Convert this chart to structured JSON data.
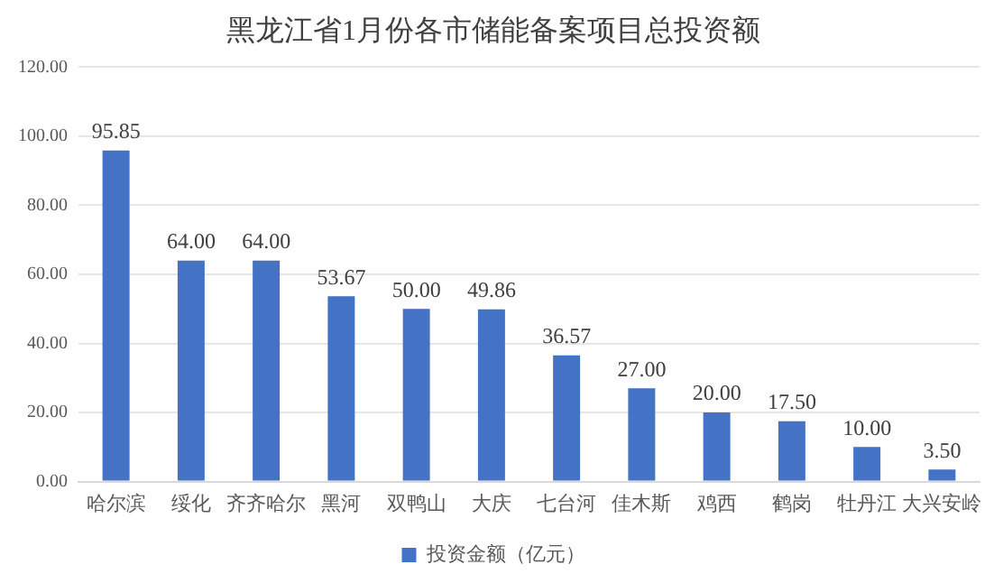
{
  "chart_data": {
    "type": "bar",
    "title": "黑龙江省1月份各市储能备案项目总投资额",
    "categories": [
      "哈尔滨",
      "绥化",
      "齐齐哈尔",
      "黑河",
      "双鸭山",
      "大庆",
      "七台河",
      "佳木斯",
      "鸡西",
      "鹤岗",
      "牡丹江",
      "大兴安岭"
    ],
    "series": [
      {
        "name": "投资金额（亿元）",
        "color": "#4472c4",
        "values": [
          95.85,
          64.0,
          64.0,
          53.67,
          50.0,
          49.86,
          36.57,
          27.0,
          20.0,
          17.5,
          10.0,
          3.5
        ],
        "value_labels": [
          "95.85",
          "64.00",
          "64.00",
          "53.67",
          "50.00",
          "49.86",
          "36.57",
          "27.00",
          "20.00",
          "17.50",
          "10.00",
          "3.50"
        ]
      }
    ],
    "ylim": [
      0,
      120
    ],
    "yticks": [
      {
        "value": 0,
        "label": "0.00"
      },
      {
        "value": 20,
        "label": "20.00"
      },
      {
        "value": 40,
        "label": "40.00"
      },
      {
        "value": 60,
        "label": "60.00"
      },
      {
        "value": 80,
        "label": "80.00"
      },
      {
        "value": 100,
        "label": "100.00"
      },
      {
        "value": 120,
        "label": "120.00"
      }
    ],
    "grid": "y",
    "legend": "bottom"
  }
}
